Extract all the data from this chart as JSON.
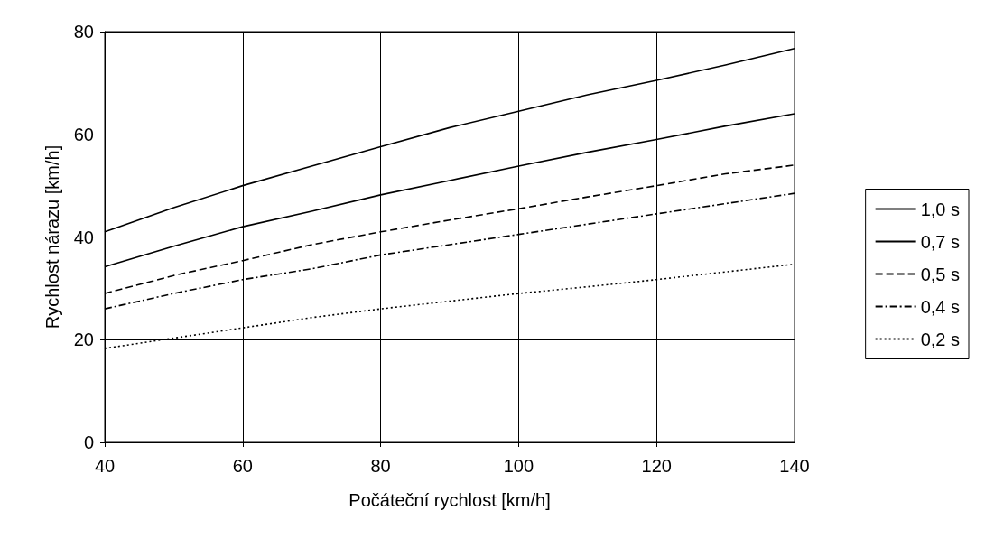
{
  "chart_data": {
    "type": "line",
    "xlabel": "Počáteční rychlost [km/h]",
    "ylabel": "Rychlost nárazu [km/h]",
    "x": [
      40,
      50,
      60,
      70,
      80,
      90,
      100,
      110,
      120,
      130,
      140
    ],
    "series": [
      {
        "name": "1,0 s",
        "color": "#000000",
        "line_style": "solid",
        "values": [
          41,
          45.7,
          50,
          53.8,
          57.6,
          61.3,
          64.5,
          67.7,
          70.5,
          73.5,
          76.7
        ]
      },
      {
        "name": "0,7 s",
        "color": "#000000",
        "line_style": "solid",
        "values": [
          34.2,
          38.2,
          42,
          45,
          48.2,
          51,
          53.8,
          56.5,
          59,
          61.6,
          64
        ]
      },
      {
        "name": "0,5 s",
        "color": "#000000",
        "line_style": "dashed",
        "values": [
          29,
          32.5,
          35.4,
          38.5,
          41,
          43.3,
          45.5,
          47.8,
          50,
          52.3,
          54
        ]
      },
      {
        "name": "0,4 s",
        "color": "#000000",
        "line_style": "dashdot",
        "values": [
          26,
          29,
          31.7,
          33.8,
          36.5,
          38.5,
          40.5,
          42.5,
          44.5,
          46.5,
          48.5
        ]
      },
      {
        "name": "0,2 s",
        "color": "#000000",
        "line_style": "dotted",
        "values": [
          18.3,
          20.3,
          22.3,
          24.3,
          26,
          27.5,
          29,
          30.3,
          31.7,
          33.2,
          34.7
        ]
      }
    ],
    "xlim": [
      40,
      140
    ],
    "xticks": [
      40,
      60,
      80,
      100,
      120,
      140
    ],
    "ylim": [
      0,
      80
    ],
    "yticks": [
      0,
      20,
      40,
      60,
      80
    ],
    "grid": true,
    "legend": "right",
    "marker": "none"
  }
}
